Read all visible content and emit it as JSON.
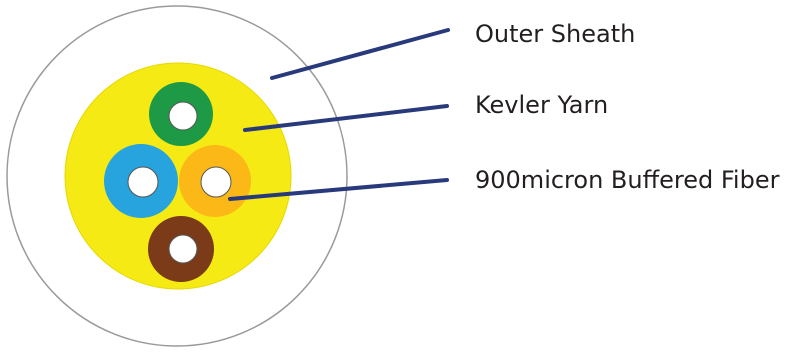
{
  "labels": {
    "outer_sheath": "Outer Sheath",
    "kevlar_yarn": "Kevler Yarn",
    "buffered_fiber": "900micron Buffered Fiber"
  },
  "colors": {
    "background": "#ffffff",
    "outer_sheath_fill": "#ffffff",
    "outer_sheath_stroke": "#9a9a9a",
    "kevlar_fill": "#f5ea14",
    "fiber_green": "#1e9a46",
    "fiber_blue": "#27a3de",
    "fiber_orange": "#fbb816",
    "fiber_brown": "#7b3a18",
    "leader_line": "#283a7c",
    "label_text": "#231f20"
  }
}
